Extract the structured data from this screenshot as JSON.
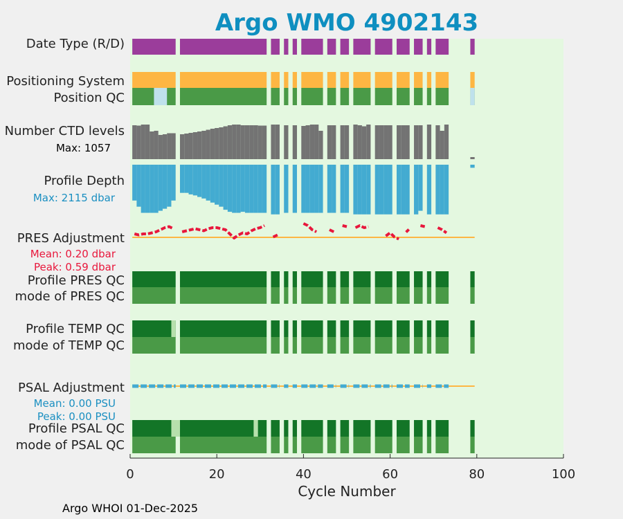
{
  "footer": "Argo WHOI 01-Dec-2025",
  "chart_data": {
    "type": "status_timeline",
    "title": "Argo WMO 4902143",
    "xlabel": "Cycle Number",
    "xlim": [
      0,
      100
    ],
    "xticks": [
      0,
      20,
      40,
      60,
      80,
      100
    ],
    "colors": {
      "background": "#e4f8e0",
      "title": "#0f8fc0",
      "purple": "#9b3d9b",
      "orange": "#fdb643",
      "dark_green": "#137527",
      "mid_green": "#4a9a47",
      "light_green": "#b7e0ac",
      "light_blue": "#bfe1ec",
      "gray": "#737373",
      "blue": "#43abd1",
      "red": "#e8173c",
      "annotation_blue": "#1a8fc1"
    },
    "cycles": [
      {
        "start": 0.5,
        "end": 10.5
      },
      {
        "start": 11.5,
        "end": 31.5
      },
      {
        "start": 32.5,
        "end": 34.5
      },
      {
        "start": 35.5,
        "end": 36.5
      },
      {
        "start": 37.5,
        "end": 38.5
      },
      {
        "start": 39.5,
        "end": 44.5
      },
      {
        "start": 45.5,
        "end": 47.5
      },
      {
        "start": 48.5,
        "end": 50.5
      },
      {
        "start": 51.5,
        "end": 55.5
      },
      {
        "start": 56.5,
        "end": 60.5
      },
      {
        "start": 61.5,
        "end": 64.5
      },
      {
        "start": 65.5,
        "end": 67.5
      },
      {
        "start": 68.5,
        "end": 69.5
      },
      {
        "start": 70.5,
        "end": 73.5
      },
      {
        "start": 78.5,
        "end": 79.5
      }
    ],
    "rows": [
      {
        "labels": [
          "Date Type (R/D)"
        ],
        "color": "purple"
      },
      {
        "labels": [
          "Positioning System"
        ],
        "color": "orange"
      },
      {
        "labels": [
          "Position QC"
        ],
        "color": "mid_green",
        "exceptions": [
          {
            "start": 5.5,
            "end": 8.5,
            "color": "light_blue"
          },
          {
            "start": 78.5,
            "end": 79.5,
            "color": "light_blue"
          }
        ]
      },
      {
        "labels": [
          "Number CTD levels"
        ],
        "note": "Max: 1057",
        "series": "ctd_levels"
      },
      {
        "labels": [
          "Profile Depth"
        ],
        "note": "Max: 2115 dbar",
        "series": "profile_depth"
      },
      {
        "labels": [
          "PRES Adjustment"
        ],
        "note": [
          "Mean: 0.20 dbar",
          "Peak: 0.59 dbar"
        ],
        "series": "pres_adjustment"
      },
      {
        "labels": [
          "Profile PRES QC",
          "mode of PRES QC"
        ],
        "colors": [
          "dark_green",
          "mid_green"
        ]
      },
      {
        "labels": [
          "Profile TEMP QC",
          "mode of TEMP QC"
        ],
        "colors": [
          "dark_green",
          "mid_green"
        ],
        "exceptions": [
          {
            "start": 9.5,
            "end": 10.5,
            "color": "light_green",
            "row": 0
          }
        ]
      },
      {
        "labels": [
          "PSAL Adjustment"
        ],
        "note": [
          "Mean: 0.00 PSU",
          "Peak: 0.00 PSU"
        ],
        "series": "psal_adjustment"
      },
      {
        "labels": [
          "Profile PSAL QC",
          "mode of PSAL QC"
        ],
        "colors": [
          "dark_green",
          "mid_green"
        ],
        "exceptions": [
          {
            "start": 9.5,
            "end": 11.5,
            "color": "light_green",
            "row": 0
          },
          {
            "start": 28.5,
            "end": 29.5,
            "color": "light_green",
            "row": 0
          }
        ]
      }
    ],
    "series": {
      "ctd_levels": {
        "max": 1057,
        "values": [
          [
            1,
            0.98
          ],
          [
            2,
            0.97
          ],
          [
            3,
            1.0
          ],
          [
            4,
            1.0
          ],
          [
            5,
            0.8
          ],
          [
            6,
            0.82
          ],
          [
            7,
            0.7
          ],
          [
            8,
            0.72
          ],
          [
            9,
            0.75
          ],
          [
            10,
            0.75
          ],
          [
            12,
            0.72
          ],
          [
            13,
            0.74
          ],
          [
            14,
            0.76
          ],
          [
            15,
            0.78
          ],
          [
            16,
            0.8
          ],
          [
            17,
            0.82
          ],
          [
            18,
            0.85
          ],
          [
            19,
            0.88
          ],
          [
            20,
            0.9
          ],
          [
            21,
            0.92
          ],
          [
            22,
            0.95
          ],
          [
            23,
            0.98
          ],
          [
            24,
            1.0
          ],
          [
            25,
            1.0
          ],
          [
            26,
            0.98
          ],
          [
            27,
            0.98
          ],
          [
            28,
            0.98
          ],
          [
            29,
            0.98
          ],
          [
            30,
            0.97
          ],
          [
            31,
            0.97
          ],
          [
            33,
            1.0
          ],
          [
            34,
            1.0
          ],
          [
            36,
            0.98
          ],
          [
            38,
            0.98
          ],
          [
            40,
            0.96
          ],
          [
            41,
            0.98
          ],
          [
            42,
            1.0
          ],
          [
            43,
            1.0
          ],
          [
            44,
            0.82
          ],
          [
            46,
            0.98
          ],
          [
            47,
            0.98
          ],
          [
            49,
            0.98
          ],
          [
            50,
            0.98
          ],
          [
            52,
            1.0
          ],
          [
            53,
            0.98
          ],
          [
            54,
            0.95
          ],
          [
            55,
            1.0
          ],
          [
            57,
            0.98
          ],
          [
            58,
            0.98
          ],
          [
            59,
            0.98
          ],
          [
            60,
            0.98
          ],
          [
            62,
            0.98
          ],
          [
            63,
            0.98
          ],
          [
            64,
            0.98
          ],
          [
            66,
            0.98
          ],
          [
            67,
            0.98
          ],
          [
            69,
            1.0
          ],
          [
            71,
            0.98
          ],
          [
            72,
            0.82
          ],
          [
            73,
            1.0
          ],
          [
            79,
            0.06
          ]
        ]
      },
      "profile_depth": {
        "max": 2115,
        "values": [
          [
            1,
            0.7
          ],
          [
            2,
            0.82
          ],
          [
            3,
            0.94
          ],
          [
            4,
            0.94
          ],
          [
            5,
            0.94
          ],
          [
            6,
            0.94
          ],
          [
            7,
            0.9
          ],
          [
            8,
            0.86
          ],
          [
            9,
            0.82
          ],
          [
            10,
            0.7
          ],
          [
            12,
            0.55
          ],
          [
            13,
            0.55
          ],
          [
            14,
            0.58
          ],
          [
            15,
            0.6
          ],
          [
            16,
            0.63
          ],
          [
            17,
            0.66
          ],
          [
            18,
            0.7
          ],
          [
            19,
            0.74
          ],
          [
            20,
            0.78
          ],
          [
            21,
            0.82
          ],
          [
            22,
            0.88
          ],
          [
            23,
            0.92
          ],
          [
            24,
            0.94
          ],
          [
            25,
            0.94
          ],
          [
            26,
            0.92
          ],
          [
            27,
            0.94
          ],
          [
            28,
            0.94
          ],
          [
            29,
            0.94
          ],
          [
            30,
            0.94
          ],
          [
            31,
            0.94
          ],
          [
            33,
            0.97
          ],
          [
            34,
            0.97
          ],
          [
            36,
            0.94
          ],
          [
            38,
            0.94
          ],
          [
            40,
            0.94
          ],
          [
            41,
            0.94
          ],
          [
            42,
            0.94
          ],
          [
            43,
            0.94
          ],
          [
            44,
            0.94
          ],
          [
            46,
            0.94
          ],
          [
            47,
            0.94
          ],
          [
            49,
            0.94
          ],
          [
            50,
            0.94
          ],
          [
            52,
            0.97
          ],
          [
            53,
            0.97
          ],
          [
            54,
            0.97
          ],
          [
            55,
            0.97
          ],
          [
            57,
            0.97
          ],
          [
            58,
            0.97
          ],
          [
            59,
            0.97
          ],
          [
            60,
            0.97
          ],
          [
            62,
            0.97
          ],
          [
            63,
            0.97
          ],
          [
            64,
            0.97
          ],
          [
            66,
            0.97
          ],
          [
            67,
            0.9
          ],
          [
            69,
            0.97
          ],
          [
            71,
            0.97
          ],
          [
            72,
            0.97
          ],
          [
            73,
            0.97
          ],
          [
            79,
            0.06
          ]
        ]
      },
      "pres_adjustment": {
        "mean": 0.2,
        "peak": 0.59,
        "values": [
          [
            1,
            0.1
          ],
          [
            2,
            0.05
          ],
          [
            3,
            0.1
          ],
          [
            4,
            0.1
          ],
          [
            5,
            0.15
          ],
          [
            6,
            0.2
          ],
          [
            7,
            0.3
          ],
          [
            8,
            0.4
          ],
          [
            9,
            0.45
          ],
          [
            10,
            0.35
          ],
          [
            12,
            0.2
          ],
          [
            13,
            0.25
          ],
          [
            14,
            0.3
          ],
          [
            15,
            0.35
          ],
          [
            16,
            0.3
          ],
          [
            17,
            0.25
          ],
          [
            18,
            0.35
          ],
          [
            19,
            0.4
          ],
          [
            20,
            0.4
          ],
          [
            21,
            0.35
          ],
          [
            22,
            0.3
          ],
          [
            23,
            0.1
          ],
          [
            24,
            -0.1
          ],
          [
            25,
            0.05
          ],
          [
            26,
            0.15
          ],
          [
            27,
            0.1
          ],
          [
            28,
            0.25
          ],
          [
            29,
            0.35
          ],
          [
            30,
            0.4
          ],
          [
            31,
            0.5
          ],
          [
            33,
            -0.05
          ],
          [
            34,
            0.05
          ],
          [
            40,
            0.6
          ],
          [
            41,
            0.5
          ],
          [
            42,
            0.3
          ],
          [
            43,
            0.2
          ],
          [
            46,
            0.3
          ],
          [
            47,
            0.2
          ],
          [
            49,
            0.5
          ],
          [
            50,
            0.45
          ],
          [
            52,
            0.4
          ],
          [
            53,
            0.5
          ],
          [
            54,
            0.4
          ],
          [
            55,
            0.45
          ],
          [
            59,
            0.0
          ],
          [
            60,
            0.15
          ],
          [
            61,
            -0.05
          ],
          [
            62,
            -0.15
          ],
          [
            64,
            0.25
          ],
          [
            67,
            0.5
          ],
          [
            68,
            0.45
          ],
          [
            71,
            0.4
          ],
          [
            72,
            0.3
          ],
          [
            73,
            0.15
          ]
        ]
      },
      "psal_adjustment": {
        "mean": 0.0,
        "peak": 0.0
      }
    }
  }
}
